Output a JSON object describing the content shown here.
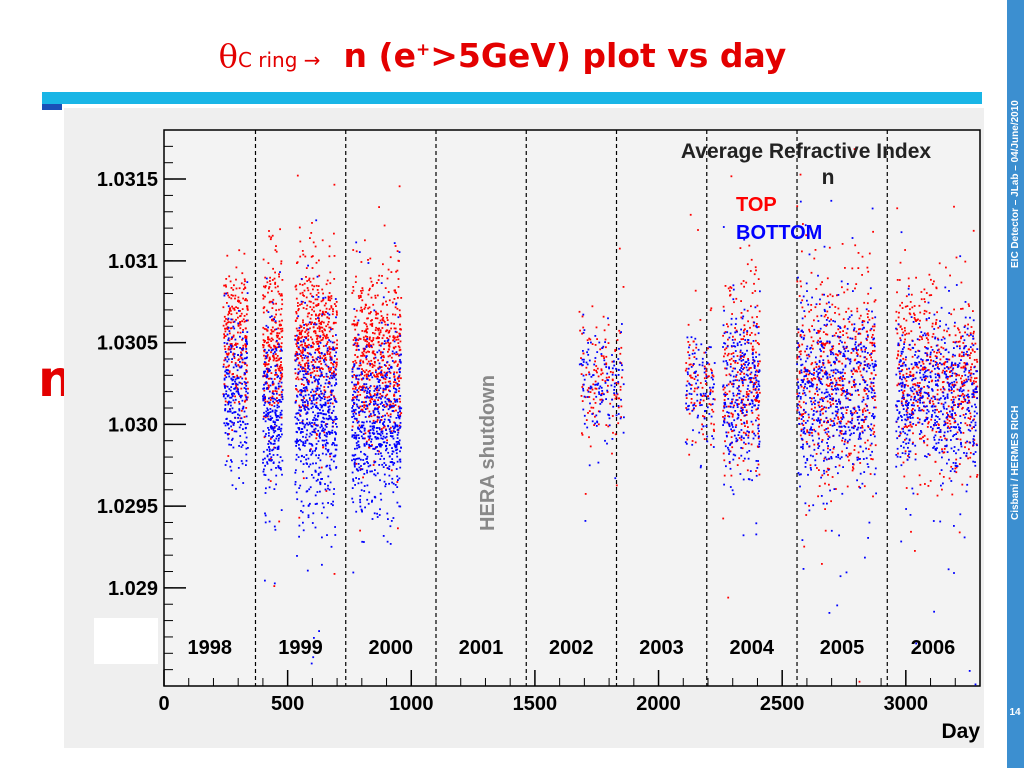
{
  "slide": {
    "title_symbol": "θ",
    "title_sub": "C ring →",
    "title_main_pre": "n (e",
    "title_sup": "+",
    "title_main_post": ">5GeV) plot vs day",
    "side_text_top": "EIC Detector – JLab – 04/June/2010",
    "side_text_bottom": "Cisbani / HERMES RICH",
    "page_number": "14",
    "big_axis_label": "n",
    "colors": {
      "title": "#e30000",
      "bar": "#19b5e6",
      "side": "#3c8fd0"
    }
  },
  "chart_data": {
    "type": "scatter",
    "title": "Average Refractive Index",
    "title_line2": "n",
    "xlabel": "Day",
    "xlim": [
      0,
      3300
    ],
    "ylim": [
      1.0284,
      1.0318
    ],
    "x_ticks": [
      "0",
      "500",
      "1000",
      "1500",
      "2000",
      "2500",
      "3000"
    ],
    "y_ticks": [
      "1.029",
      "1.0295",
      "1.030",
      "1.0305",
      "1.031",
      "1.0315"
    ],
    "legend": [
      {
        "name": "TOP",
        "color": "#ff0000"
      },
      {
        "name": "BOTTOM",
        "color": "#0000ff"
      }
    ],
    "legend_position": "top-right",
    "annotation": "HERA shutdown",
    "year_dividers": [
      370,
      735,
      1100,
      1465,
      1830,
      2195,
      2560,
      2925
    ],
    "years": [
      {
        "label": "1998",
        "x": 185
      },
      {
        "label": "1999",
        "x": 552
      },
      {
        "label": "2000",
        "x": 917
      },
      {
        "label": "2001",
        "x": 1282
      },
      {
        "label": "2002",
        "x": 1647
      },
      {
        "label": "2003",
        "x": 2012
      },
      {
        "label": "2004",
        "x": 2377
      },
      {
        "label": "2005",
        "x": 2742
      },
      {
        "label": "2006",
        "x": 3110
      }
    ],
    "series": [
      {
        "name": "TOP",
        "color": "#ff0000",
        "clusters": [
          {
            "x": [
              240,
              340
            ],
            "y": 1.03055,
            "sd": 0.00022,
            "n": 240
          },
          {
            "x": [
              400,
              480
            ],
            "y": 1.0305,
            "sd": 0.00025,
            "n": 260
          },
          {
            "x": [
              530,
              700
            ],
            "y": 1.03052,
            "sd": 0.00025,
            "n": 500
          },
          {
            "x": [
              760,
              960
            ],
            "y": 1.0304,
            "sd": 0.00025,
            "n": 560
          },
          {
            "x": [
              1680,
              1860
            ],
            "y": 1.03028,
            "sd": 0.0002,
            "n": 130
          },
          {
            "x": [
              2110,
              2230
            ],
            "y": 1.03022,
            "sd": 0.00022,
            "n": 90
          },
          {
            "x": [
              2260,
              2410
            ],
            "y": 1.03025,
            "sd": 0.0003,
            "n": 260
          },
          {
            "x": [
              2560,
              2880
            ],
            "y": 1.03028,
            "sd": 0.00032,
            "n": 520
          },
          {
            "x": [
              2960,
              3290
            ],
            "y": 1.0303,
            "sd": 0.00028,
            "n": 560
          }
        ]
      },
      {
        "name": "BOTTOM",
        "color": "#0000ff",
        "clusters": [
          {
            "x": [
              240,
              340
            ],
            "y": 1.0302,
            "sd": 0.00022,
            "n": 240
          },
          {
            "x": [
              400,
              480
            ],
            "y": 1.03005,
            "sd": 0.00025,
            "n": 260
          },
          {
            "x": [
              530,
              700
            ],
            "y": 1.03005,
            "sd": 0.00028,
            "n": 560
          },
          {
            "x": [
              760,
              960
            ],
            "y": 1.03,
            "sd": 0.00025,
            "n": 600
          },
          {
            "x": [
              1680,
              1860
            ],
            "y": 1.03025,
            "sd": 0.00018,
            "n": 130
          },
          {
            "x": [
              2110,
              2230
            ],
            "y": 1.0302,
            "sd": 0.00018,
            "n": 100
          },
          {
            "x": [
              2260,
              2410
            ],
            "y": 1.0302,
            "sd": 0.00025,
            "n": 300
          },
          {
            "x": [
              2560,
              2880
            ],
            "y": 1.03018,
            "sd": 0.00028,
            "n": 620
          },
          {
            "x": [
              2960,
              3290
            ],
            "y": 1.03015,
            "sd": 0.00025,
            "n": 620
          }
        ]
      }
    ]
  }
}
